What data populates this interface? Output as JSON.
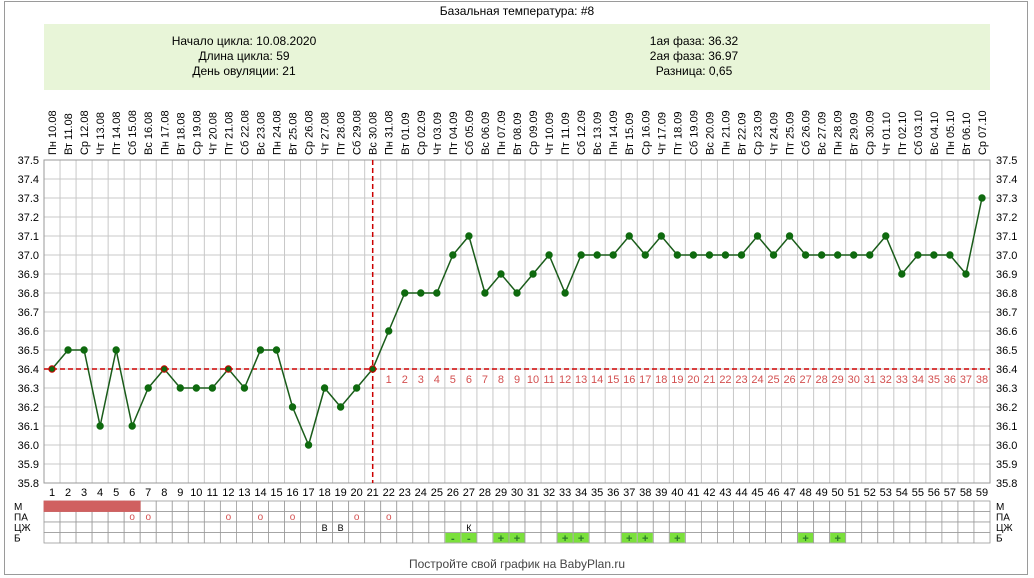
{
  "title": "Базальная температура: #8",
  "info": {
    "start": "Начало цикла: 10.08.2020",
    "length": "Длина цикла: 59",
    "ovulation": "День овуляции: 21",
    "phase1": "1ая фаза: 36.32",
    "phase2": "2ая фаза: 36.97",
    "difference": "Разница: 0,65"
  },
  "footer": "Постройте свой график на BabyPlan.ru",
  "chart_data": {
    "type": "line",
    "ylim": [
      35.8,
      37.5
    ],
    "yticks": [
      "35.8",
      "35.9",
      "36.0",
      "36.1",
      "36.2",
      "36.3",
      "36.4",
      "36.5",
      "36.6",
      "36.7",
      "36.8",
      "36.9",
      "37.0",
      "37.1",
      "37.2",
      "37.3",
      "37.4",
      "37.5"
    ],
    "dates": [
      "Пн 10.08",
      "Вт 11.08",
      "Ср 12.08",
      "Чт 13.08",
      "Пт 14.08",
      "Сб 15.08",
      "Вс 16.08",
      "Пн 17.08",
      "Вт 18.08",
      "Ср 19.08",
      "Чт 20.08",
      "Пт 21.08",
      "Сб 22.08",
      "Вс 23.08",
      "Пн 24.08",
      "Вт 25.08",
      "Ср 26.08",
      "Чт 27.08",
      "Пт 28.08",
      "Сб 29.08",
      "Вс 30.08",
      "Пн 31.08",
      "Вт 01.09",
      "Ср 02.09",
      "Чт 03.09",
      "Пт 04.09",
      "Сб 05.09",
      "Вс 06.09",
      "Пн 07.09",
      "Вт 08.09",
      "Ср 09.09",
      "Чт 10.09",
      "Пт 11.09",
      "Сб 12.09",
      "Вс 13.09",
      "Пн 14.09",
      "Вт 15.09",
      "Ср 16.09",
      "Чт 17.09",
      "Пт 18.09",
      "Сб 19.09",
      "Вс 20.09",
      "Пн 21.09",
      "Вт 22.09",
      "Ср 23.09",
      "Чт 24.09",
      "Пт 25.09",
      "Сб 26.09",
      "Вс 27.09",
      "Пн 28.09",
      "Вт 29.09",
      "Ср 30.09",
      "Чт 01.10",
      "Пт 02.10",
      "Сб 03.10",
      "Вс 04.10",
      "Пн 05.10",
      "Вт 06.10",
      "Ср 07.10"
    ],
    "days": [
      "1",
      "2",
      "3",
      "4",
      "5",
      "6",
      "7",
      "8",
      "9",
      "10",
      "11",
      "12",
      "13",
      "14",
      "15",
      "16",
      "17",
      "18",
      "19",
      "20",
      "21",
      "22",
      "23",
      "24",
      "25",
      "26",
      "27",
      "28",
      "29",
      "30",
      "31",
      "32",
      "33",
      "34",
      "35",
      "36",
      "37",
      "38",
      "39",
      "40",
      "41",
      "42",
      "43",
      "44",
      "45",
      "46",
      "47",
      "48",
      "49",
      "50",
      "51",
      "52",
      "53",
      "54",
      "55",
      "56",
      "57",
      "58",
      "59"
    ],
    "temps": [
      36.4,
      36.5,
      36.5,
      36.1,
      36.5,
      36.1,
      36.3,
      36.4,
      36.3,
      36.3,
      36.3,
      36.4,
      36.3,
      36.5,
      36.5,
      36.2,
      36.0,
      36.3,
      36.2,
      36.3,
      36.4,
      36.6,
      36.8,
      36.8,
      36.8,
      37.0,
      37.1,
      36.8,
      36.9,
      36.8,
      36.9,
      37.0,
      36.8,
      37.0,
      37.0,
      37.0,
      37.1,
      37.0,
      37.1,
      37.0,
      37.0,
      37.0,
      37.0,
      37.0,
      37.1,
      37.0,
      37.1,
      37.0,
      37.0,
      37.0,
      37.0,
      37.0,
      37.1,
      36.9,
      37.0,
      37.0,
      37.0,
      36.9,
      37.3
    ],
    "coverline": 36.4,
    "ovulation_day": 21,
    "post_ovulation_labels": [
      "1",
      "2",
      "3",
      "4",
      "5",
      "6",
      "7",
      "8",
      "9",
      "10",
      "11",
      "12",
      "13",
      "14",
      "15",
      "16",
      "17",
      "18",
      "19",
      "20",
      "21",
      "22",
      "23",
      "24",
      "25",
      "26",
      "27",
      "28",
      "29",
      "30",
      "31",
      "32",
      "33",
      "34",
      "35",
      "36",
      "37",
      "38"
    ],
    "marked_points": [
      1,
      8,
      12,
      21
    ],
    "row_labels": [
      "М",
      "ПА",
      "ЦЖ",
      "Б"
    ],
    "menstruation_days": [
      1,
      2,
      3,
      4,
      5,
      6
    ],
    "pa_days": [
      6,
      7,
      12,
      14,
      16,
      20,
      22
    ],
    "pa_symbol": "o",
    "cj_entries": [
      {
        "day": 18,
        "text": "В"
      },
      {
        "day": 19,
        "text": "В"
      },
      {
        "day": 27,
        "text": "К"
      }
    ],
    "b_entries": [
      {
        "day": 26,
        "text": "-"
      },
      {
        "day": 27,
        "text": "-"
      },
      {
        "day": 29,
        "text": "+"
      },
      {
        "day": 30,
        "text": "+"
      },
      {
        "day": 33,
        "text": "+"
      },
      {
        "day": 34,
        "text": "+"
      },
      {
        "day": 37,
        "text": "+"
      },
      {
        "day": 38,
        "text": "+"
      },
      {
        "day": 40,
        "text": "+"
      },
      {
        "day": 48,
        "text": "+"
      },
      {
        "day": 50,
        "text": "+"
      }
    ],
    "colors": {
      "line": "#1a5c1a",
      "point": "#0f6a0f",
      "grid": "#c8c8c8",
      "coverline": "#cc0000",
      "post_labels": "#d35050",
      "menstruation": "#d06060",
      "pa_marks": "#d35050",
      "b_fill": "#7be03c",
      "b_text": "#2a7a2a"
    }
  }
}
